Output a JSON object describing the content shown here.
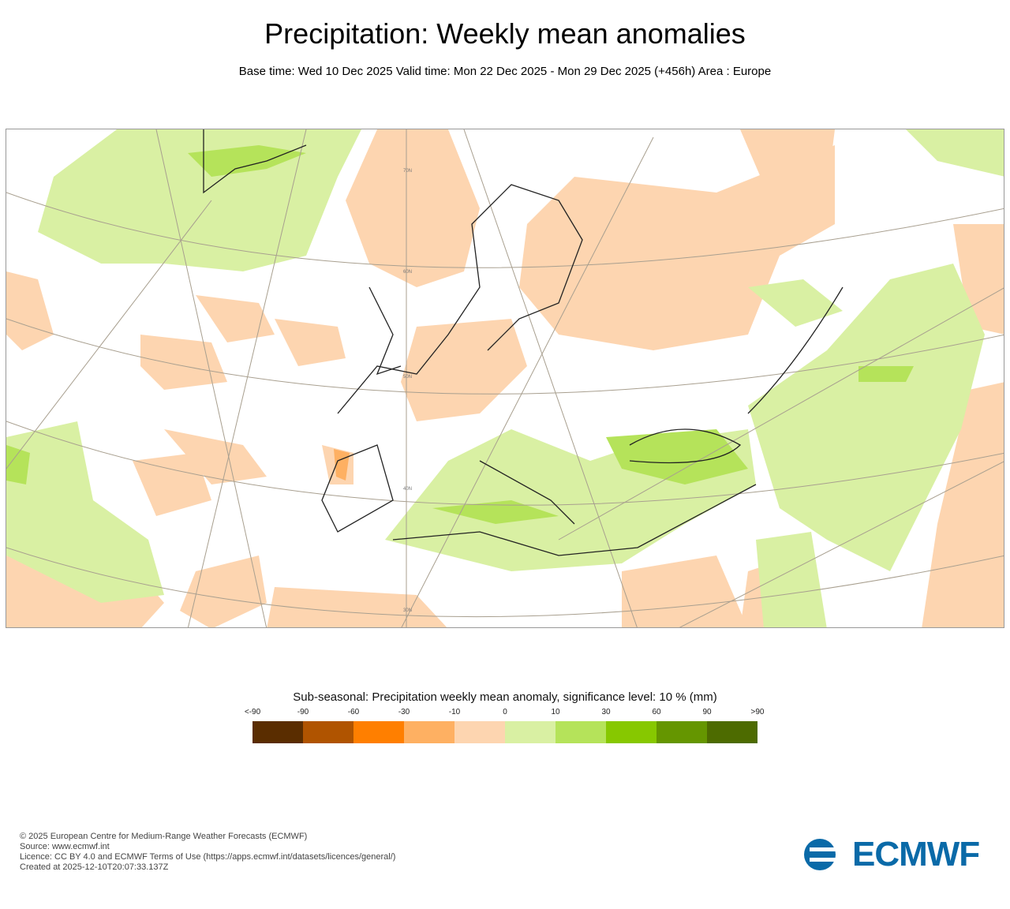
{
  "title": "Precipitation: Weekly mean anomalies",
  "subtitle": "Base time: Wed 10 Dec 2025 Valid time: Mon 22 Dec 2025 - Mon 29 Dec 2025 (+456h) Area : Europe",
  "map": {
    "latitude_labels": [
      "70N",
      "60N",
      "50N",
      "40N",
      "30N"
    ],
    "dry_color": "#fdd5b0",
    "wet_color": "#d9f0a3",
    "wet2_color": "#b5e35a"
  },
  "legend": {
    "title": "Sub-seasonal: Precipitation weekly mean anomaly, significance level: 10 % (mm)",
    "ticks": [
      "<-90",
      "-90",
      "-60",
      "-30",
      "-10",
      "0",
      "10",
      "30",
      "60",
      "90",
      ">90"
    ],
    "colors": [
      "#5a2d00",
      "#b05400",
      "#ff7f00",
      "#feb062",
      "#fdd5b0",
      "#d9f0a3",
      "#b5e35a",
      "#87c800",
      "#659600",
      "#4d6b00"
    ]
  },
  "footer": {
    "copyright": "© 2025 European Centre for Medium-Range Weather Forecasts (ECMWF)",
    "source": "Source: www.ecmwf.int",
    "licence": "Licence: CC BY 4.0 and ECMWF Terms of Use (https://apps.ecmwf.int/datasets/licences/general/)",
    "created": "Created at 2025-12-10T20:07:33.137Z"
  },
  "logo": {
    "text": "ECMWF"
  }
}
